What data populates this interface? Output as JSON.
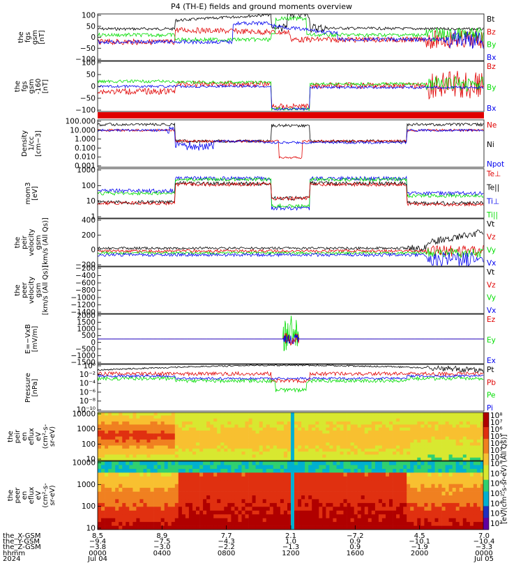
{
  "title": "P4 (TH-E) fields and ground moments overview",
  "colors": {
    "black": "#000000",
    "red": "#e00000",
    "green": "#00dd00",
    "blue": "#0000ee"
  },
  "chart_data": [
    {
      "type": "line",
      "ylabel": [
        "the",
        "fgs",
        "gsm",
        "[nT]"
      ],
      "yticks": [
        "100",
        "50",
        "0",
        "−50",
        "−100"
      ],
      "ylim": [
        -100,
        100
      ],
      "series": [
        {
          "name": "Bt",
          "color": "black"
        },
        {
          "name": "Bz",
          "color": "red"
        },
        {
          "name": "By",
          "color": "green"
        },
        {
          "name": "Bx",
          "color": "blue"
        }
      ]
    },
    {
      "type": "line",
      "ylabel": [
        "the",
        "fgs",
        "gsm",
        "-160",
        "[nT]"
      ],
      "yticks": [
        "100",
        "50",
        "0",
        "−50",
        "−100"
      ],
      "ylim": [
        -120,
        120
      ],
      "series": [
        {
          "name": "Bz",
          "color": "red"
        },
        {
          "name": "By",
          "color": "green"
        },
        {
          "name": "Bx",
          "color": "blue"
        }
      ]
    },
    {
      "type": "line",
      "ylabel": [
        "Density",
        "1/cc",
        "[cm−3]"
      ],
      "yticks": [
        "100.000",
        "10.000",
        "1.000",
        "0.100",
        "0.010",
        "0.001"
      ],
      "yscale": "log",
      "series": [
        {
          "name": "Ne",
          "color": "red"
        },
        {
          "name": "Ni",
          "color": "black"
        },
        {
          "name": "Npot",
          "color": "blue"
        }
      ]
    },
    {
      "type": "line",
      "ylabel": [
        "mom3",
        "[eV]"
      ],
      "yticks": [
        "1000",
        "100",
        "10",
        "1"
      ],
      "yscale": "log",
      "series": [
        {
          "name": "Te⊥",
          "color": "red"
        },
        {
          "name": "Te||",
          "color": "black"
        },
        {
          "name": "Ti⊥",
          "color": "blue"
        },
        {
          "name": "Ti||",
          "color": "green"
        }
      ]
    },
    {
      "type": "line",
      "ylabel": [
        "the",
        "peir",
        "velocity",
        "gsm",
        "[km/s (All Qs)]"
      ],
      "yticks": [
        "400",
        "200",
        "0",
        "−200"
      ],
      "series": [
        {
          "name": "Vt",
          "color": "black"
        },
        {
          "name": "Vz",
          "color": "red"
        },
        {
          "name": "Vy",
          "color": "green"
        },
        {
          "name": "Vx",
          "color": "blue"
        }
      ]
    },
    {
      "type": "line",
      "ylabel": [
        "the",
        "peer",
        "velocity",
        "gsm",
        "[km/s (All Qs)]"
      ],
      "yticks": [
        "−200",
        "−400",
        "−600",
        "−800",
        "−1000",
        "−1200",
        "−1400"
      ],
      "series": [
        {
          "name": "Vt",
          "color": "black"
        },
        {
          "name": "Vz",
          "color": "red"
        },
        {
          "name": "Vy",
          "color": "green"
        },
        {
          "name": "Vx",
          "color": "blue"
        }
      ]
    },
    {
      "type": "line",
      "ylabel": [
        "E=−VxB",
        "[mV/m]"
      ],
      "yticks": [
        "2000",
        "1500",
        "1000",
        "500",
        "0",
        "−500",
        "−1000",
        "−1500"
      ],
      "series": [
        {
          "name": "Ez",
          "color": "red"
        },
        {
          "name": "Ey",
          "color": "green"
        },
        {
          "name": "Ex",
          "color": "blue"
        }
      ]
    },
    {
      "type": "line",
      "ylabel": [
        "Pressure",
        "[nPa]"
      ],
      "yticks": [
        "10⁰",
        "10⁻²",
        "10⁻⁴",
        "10⁻⁶",
        "10⁻⁸",
        "10⁻¹⁰"
      ],
      "yscale": "log",
      "series": [
        {
          "name": "Pt",
          "color": "black"
        },
        {
          "name": "Pb",
          "color": "red"
        },
        {
          "name": "Pe",
          "color": "green"
        },
        {
          "name": "Pi",
          "color": "blue"
        }
      ]
    },
    {
      "type": "heatmap",
      "ylabel": [
        "the",
        "peir",
        "en",
        "eflux",
        "eV",
        "(cm²-s-",
        "sr-eV)"
      ],
      "yticks": [
        "10000",
        "1000",
        "100",
        "10"
      ],
      "yscale": "log"
    },
    {
      "type": "heatmap",
      "ylabel": [
        "the",
        "peer",
        "en",
        "eflux",
        "eV",
        "(cm²-s-",
        "sr-eV)"
      ],
      "yticks": [
        "10000",
        "1000",
        "100",
        "10"
      ],
      "yscale": "log"
    }
  ],
  "colorbar": {
    "ticks_top": [
      "10⁸",
      "10⁷",
      "10⁶",
      "10⁵",
      "10⁴",
      "10³",
      "10²"
    ],
    "ticks_bottom": [
      "10⁸",
      "10⁷",
      "10⁶",
      "10⁵",
      "10⁴",
      "10³",
      "10²"
    ],
    "unit": "[eV/(cm²-s-sr-eV) (All Qs)]"
  },
  "xaxis": {
    "rows": [
      {
        "label": "the_X-GSM",
        "values": [
          "8.5",
          "8.9",
          "7.7",
          "2.1",
          "−7.2",
          "4.5",
          "7.0"
        ]
      },
      {
        "label": "the_Y-GSM",
        "values": [
          "−9.4",
          "−7.5",
          "−4.3",
          "1.0",
          "0.9",
          "−10.1",
          "−10.4"
        ]
      },
      {
        "label": "the_Z-GSM",
        "values": [
          "−3.8",
          "−3.0",
          "−2.2",
          "−1.3",
          "0.9",
          "−1.9",
          "−3.3"
        ]
      },
      {
        "label": "hhmm",
        "values": [
          "0000",
          "0400",
          "0800",
          "1200",
          "1600",
          "2000",
          "0000"
        ]
      },
      {
        "label": "2024",
        "values": [
          "Jul 04",
          "",
          "",
          "",
          "",
          "",
          "Jul 05"
        ]
      }
    ]
  }
}
